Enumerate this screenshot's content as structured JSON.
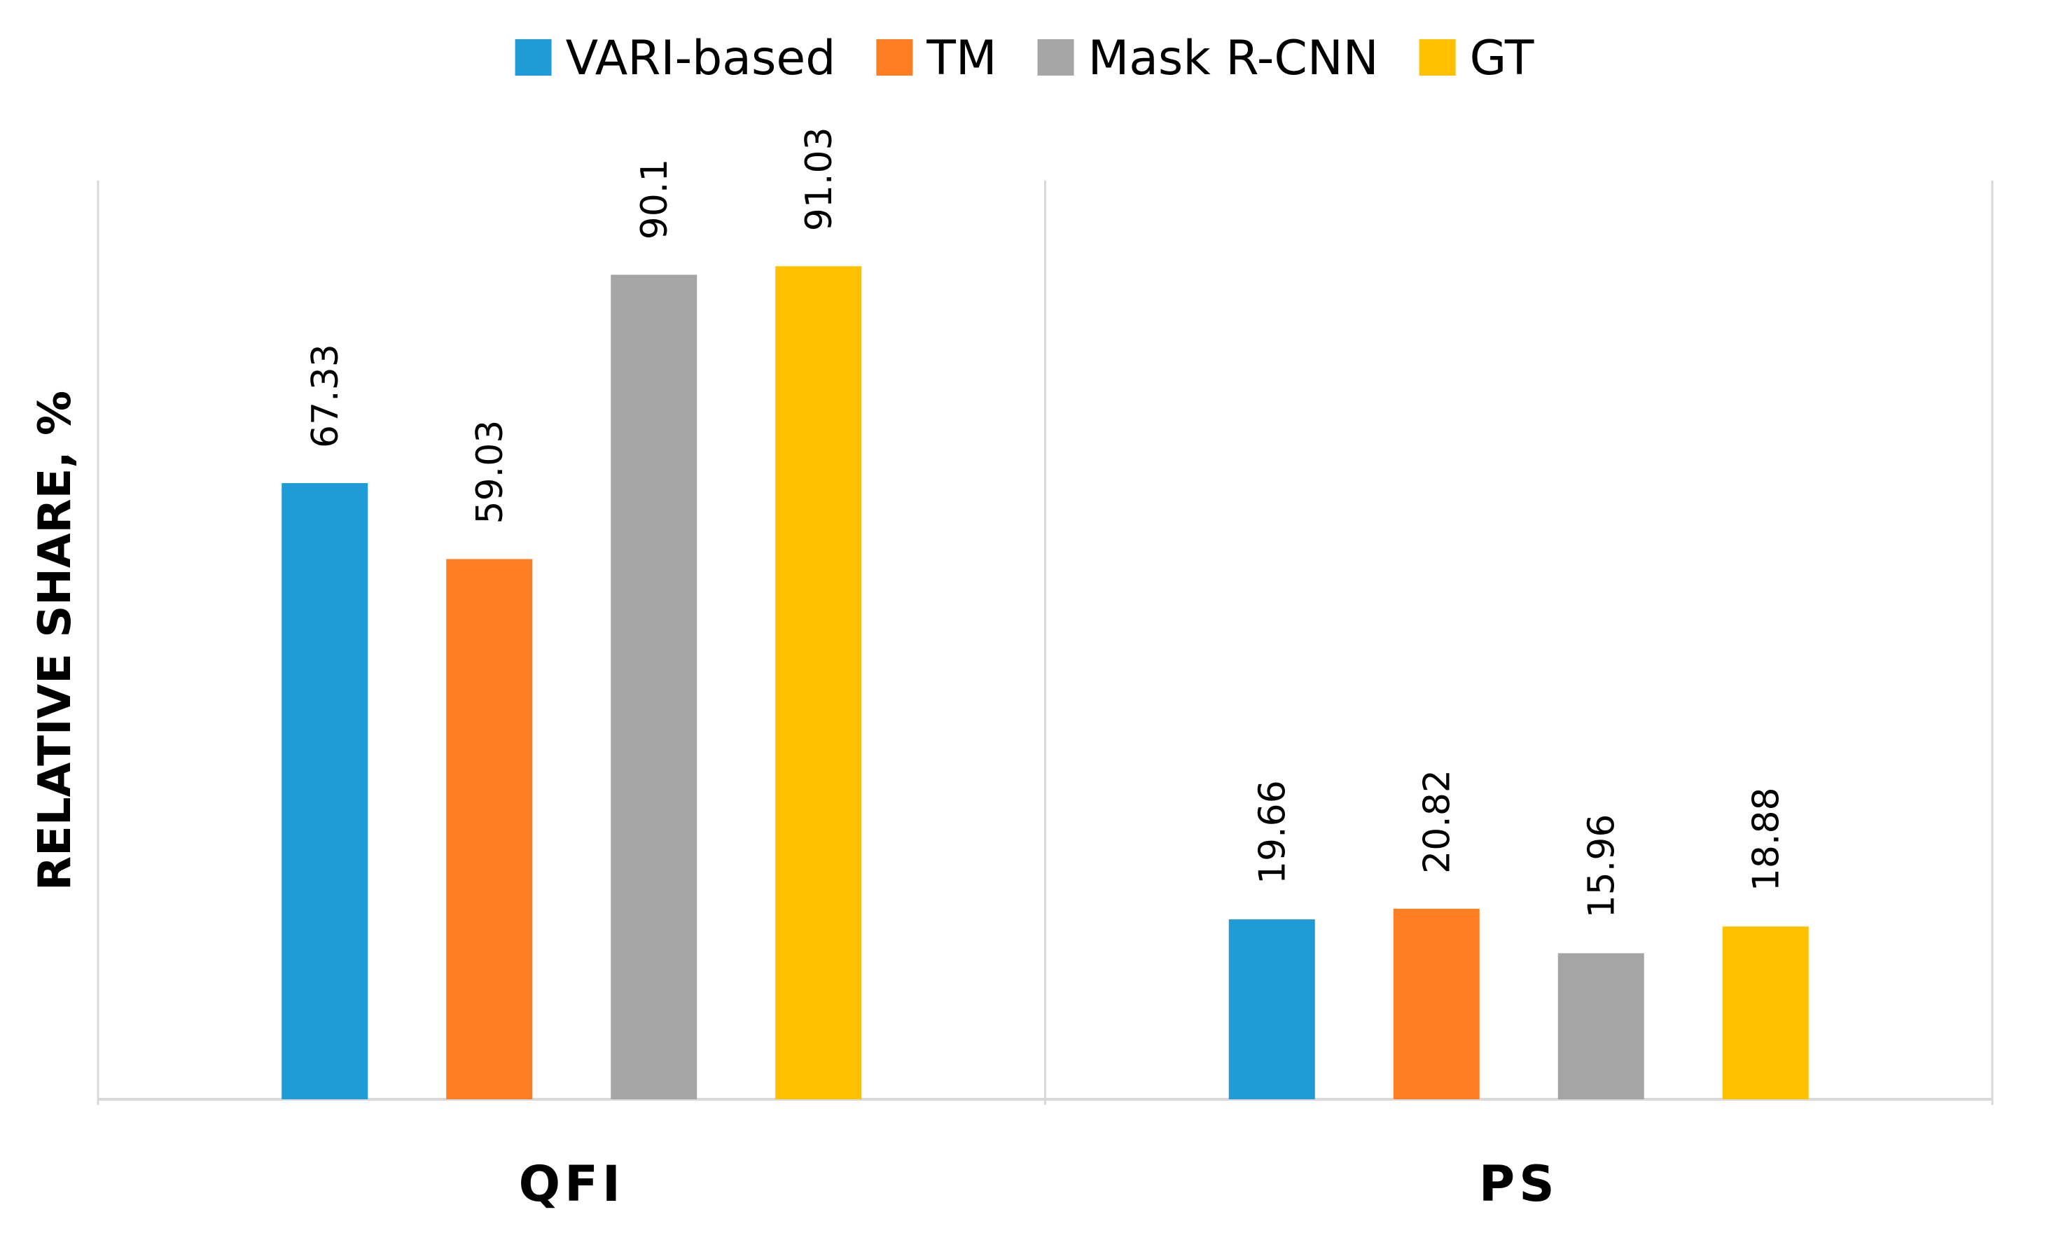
{
  "chart_data": {
    "type": "bar",
    "categories": [
      "QFI",
      "PS"
    ],
    "series": [
      {
        "name": "VARI-based",
        "color": "#1f9bd7",
        "values": [
          67.33,
          19.66
        ]
      },
      {
        "name": "TM",
        "color": "#fd7e23",
        "values": [
          59.03,
          20.82
        ]
      },
      {
        "name": "Mask R-CNN",
        "color": "#a5a5a5",
        "values": [
          90.1,
          15.96
        ]
      },
      {
        "name": "GT",
        "color": "#ffc000",
        "values": [
          91.03,
          18.88
        ]
      }
    ],
    "title": "",
    "xlabel": "",
    "ylabel": "RELATIVE SHARE, %",
    "ylim": [
      0,
      100
    ],
    "grid": false,
    "legend": "top-center",
    "data_labels": true,
    "axis_color": "#d9d9d9"
  }
}
